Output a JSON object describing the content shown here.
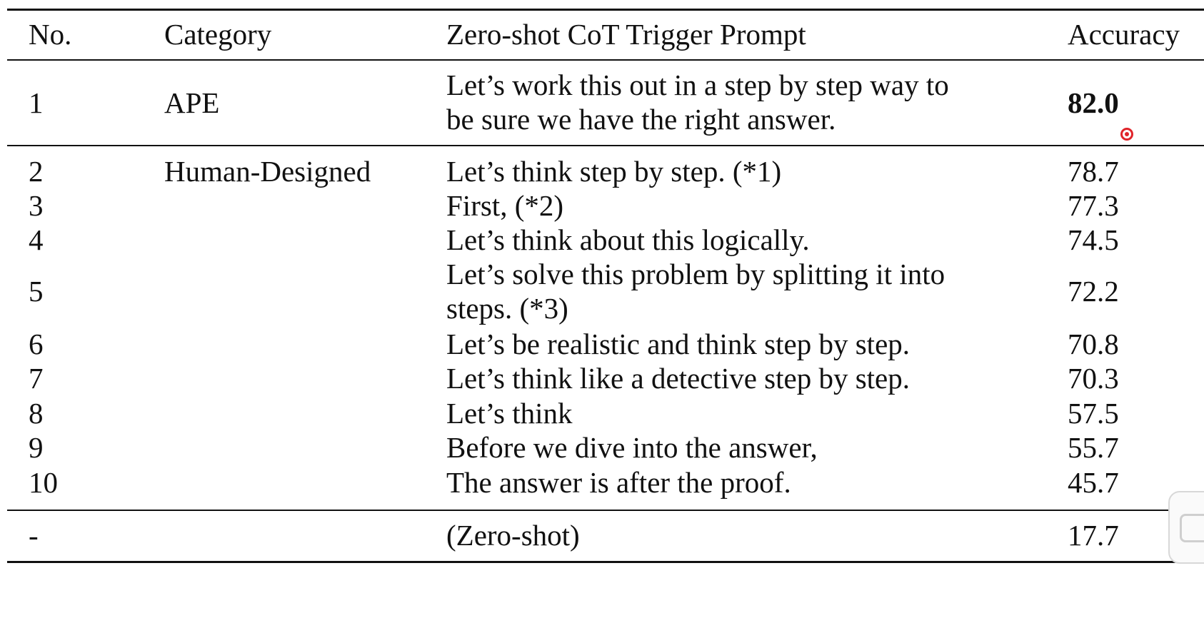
{
  "table": {
    "headers": [
      "No.",
      "Category",
      "Zero-shot CoT Trigger Prompt",
      "Accuracy"
    ],
    "rows": [
      {
        "no": "1",
        "category": "APE",
        "prompt_lines": [
          "Let’s work this out in a step by step way to",
          "be sure we have the right answer."
        ],
        "accuracy": "82.0",
        "bold": true
      },
      {
        "no": "2",
        "category": "Human-Designed",
        "prompt_lines": [
          "Let’s think step by step. (*1)"
        ],
        "accuracy": "78.7"
      },
      {
        "no": "3",
        "category": "",
        "prompt_lines": [
          "First, (*2)"
        ],
        "accuracy": "77.3"
      },
      {
        "no": "4",
        "category": "",
        "prompt_lines": [
          "Let’s think about this logically."
        ],
        "accuracy": "74.5"
      },
      {
        "no": "5",
        "category": "",
        "prompt_lines": [
          "Let’s solve this problem by splitting it into",
          "steps. (*3)"
        ],
        "accuracy": "72.2"
      },
      {
        "no": "6",
        "category": "",
        "prompt_lines": [
          "Let’s be realistic and think step by step."
        ],
        "accuracy": "70.8"
      },
      {
        "no": "7",
        "category": "",
        "prompt_lines": [
          "Let’s think like a detective step by step."
        ],
        "accuracy": "70.3"
      },
      {
        "no": "8",
        "category": "",
        "prompt_lines": [
          "Let’s think"
        ],
        "accuracy": "57.5"
      },
      {
        "no": "9",
        "category": "",
        "prompt_lines": [
          "Before we dive into the answer,"
        ],
        "accuracy": "55.7"
      },
      {
        "no": "10",
        "category": "",
        "prompt_lines": [
          "The answer is after the proof."
        ],
        "accuracy": "45.7"
      },
      {
        "no": "-",
        "category": "",
        "prompt_lines": [
          "(Zero-shot)"
        ],
        "accuracy": "17.7"
      }
    ]
  },
  "indicator": {
    "icon": "record-indicator-icon",
    "color": "#e0242a"
  }
}
